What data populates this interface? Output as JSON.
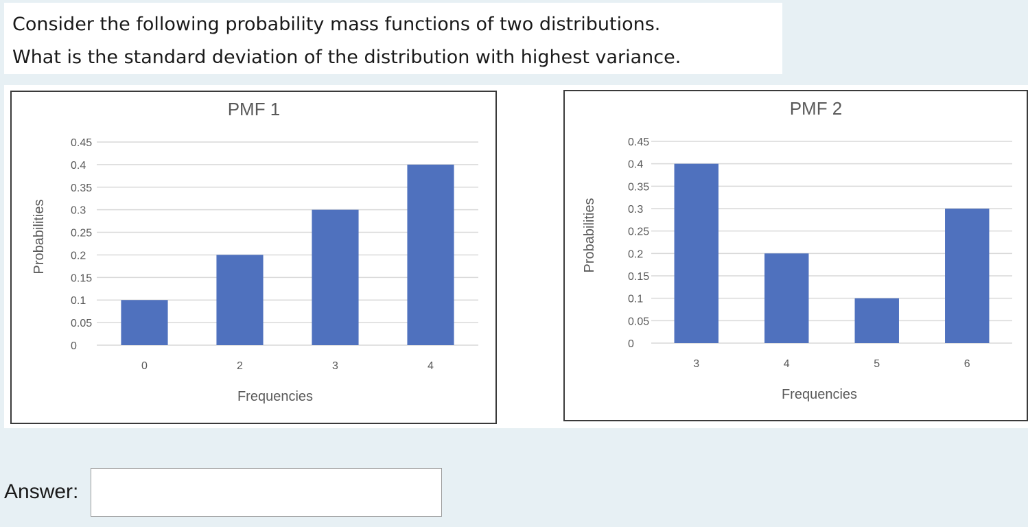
{
  "question": {
    "line1": "Consider the following probability mass functions of two distributions.",
    "line2": "What is the standard deviation of the distribution with highest variance."
  },
  "answer": {
    "label": "Answer:",
    "value": ""
  },
  "colors": {
    "bar": "#4f71be",
    "grid": "#d9d9d9",
    "text": "#595959"
  },
  "chart_data": [
    {
      "type": "bar",
      "title": "PMF 1",
      "xlabel": "Frequencies",
      "ylabel": "Probabilities",
      "categories": [
        "0",
        "2",
        "3",
        "4"
      ],
      "values": [
        0.1,
        0.2,
        0.3,
        0.4
      ],
      "ylim": [
        0,
        0.45
      ],
      "yticks": [
        "0",
        "0.05",
        "0.1",
        "0.15",
        "0.2",
        "0.25",
        "0.3",
        "0.35",
        "0.4",
        "0.45"
      ],
      "grid": true,
      "legend": "none"
    },
    {
      "type": "bar",
      "title": "PMF 2",
      "xlabel": "Frequencies",
      "ylabel": "Probabilities",
      "categories": [
        "3",
        "4",
        "5",
        "6"
      ],
      "values": [
        0.4,
        0.2,
        0.1,
        0.3
      ],
      "ylim": [
        0,
        0.45
      ],
      "yticks": [
        "0",
        "0.05",
        "0.1",
        "0.15",
        "0.2",
        "0.25",
        "0.3",
        "0.35",
        "0.4",
        "0.45"
      ],
      "grid": true,
      "legend": "none"
    }
  ]
}
